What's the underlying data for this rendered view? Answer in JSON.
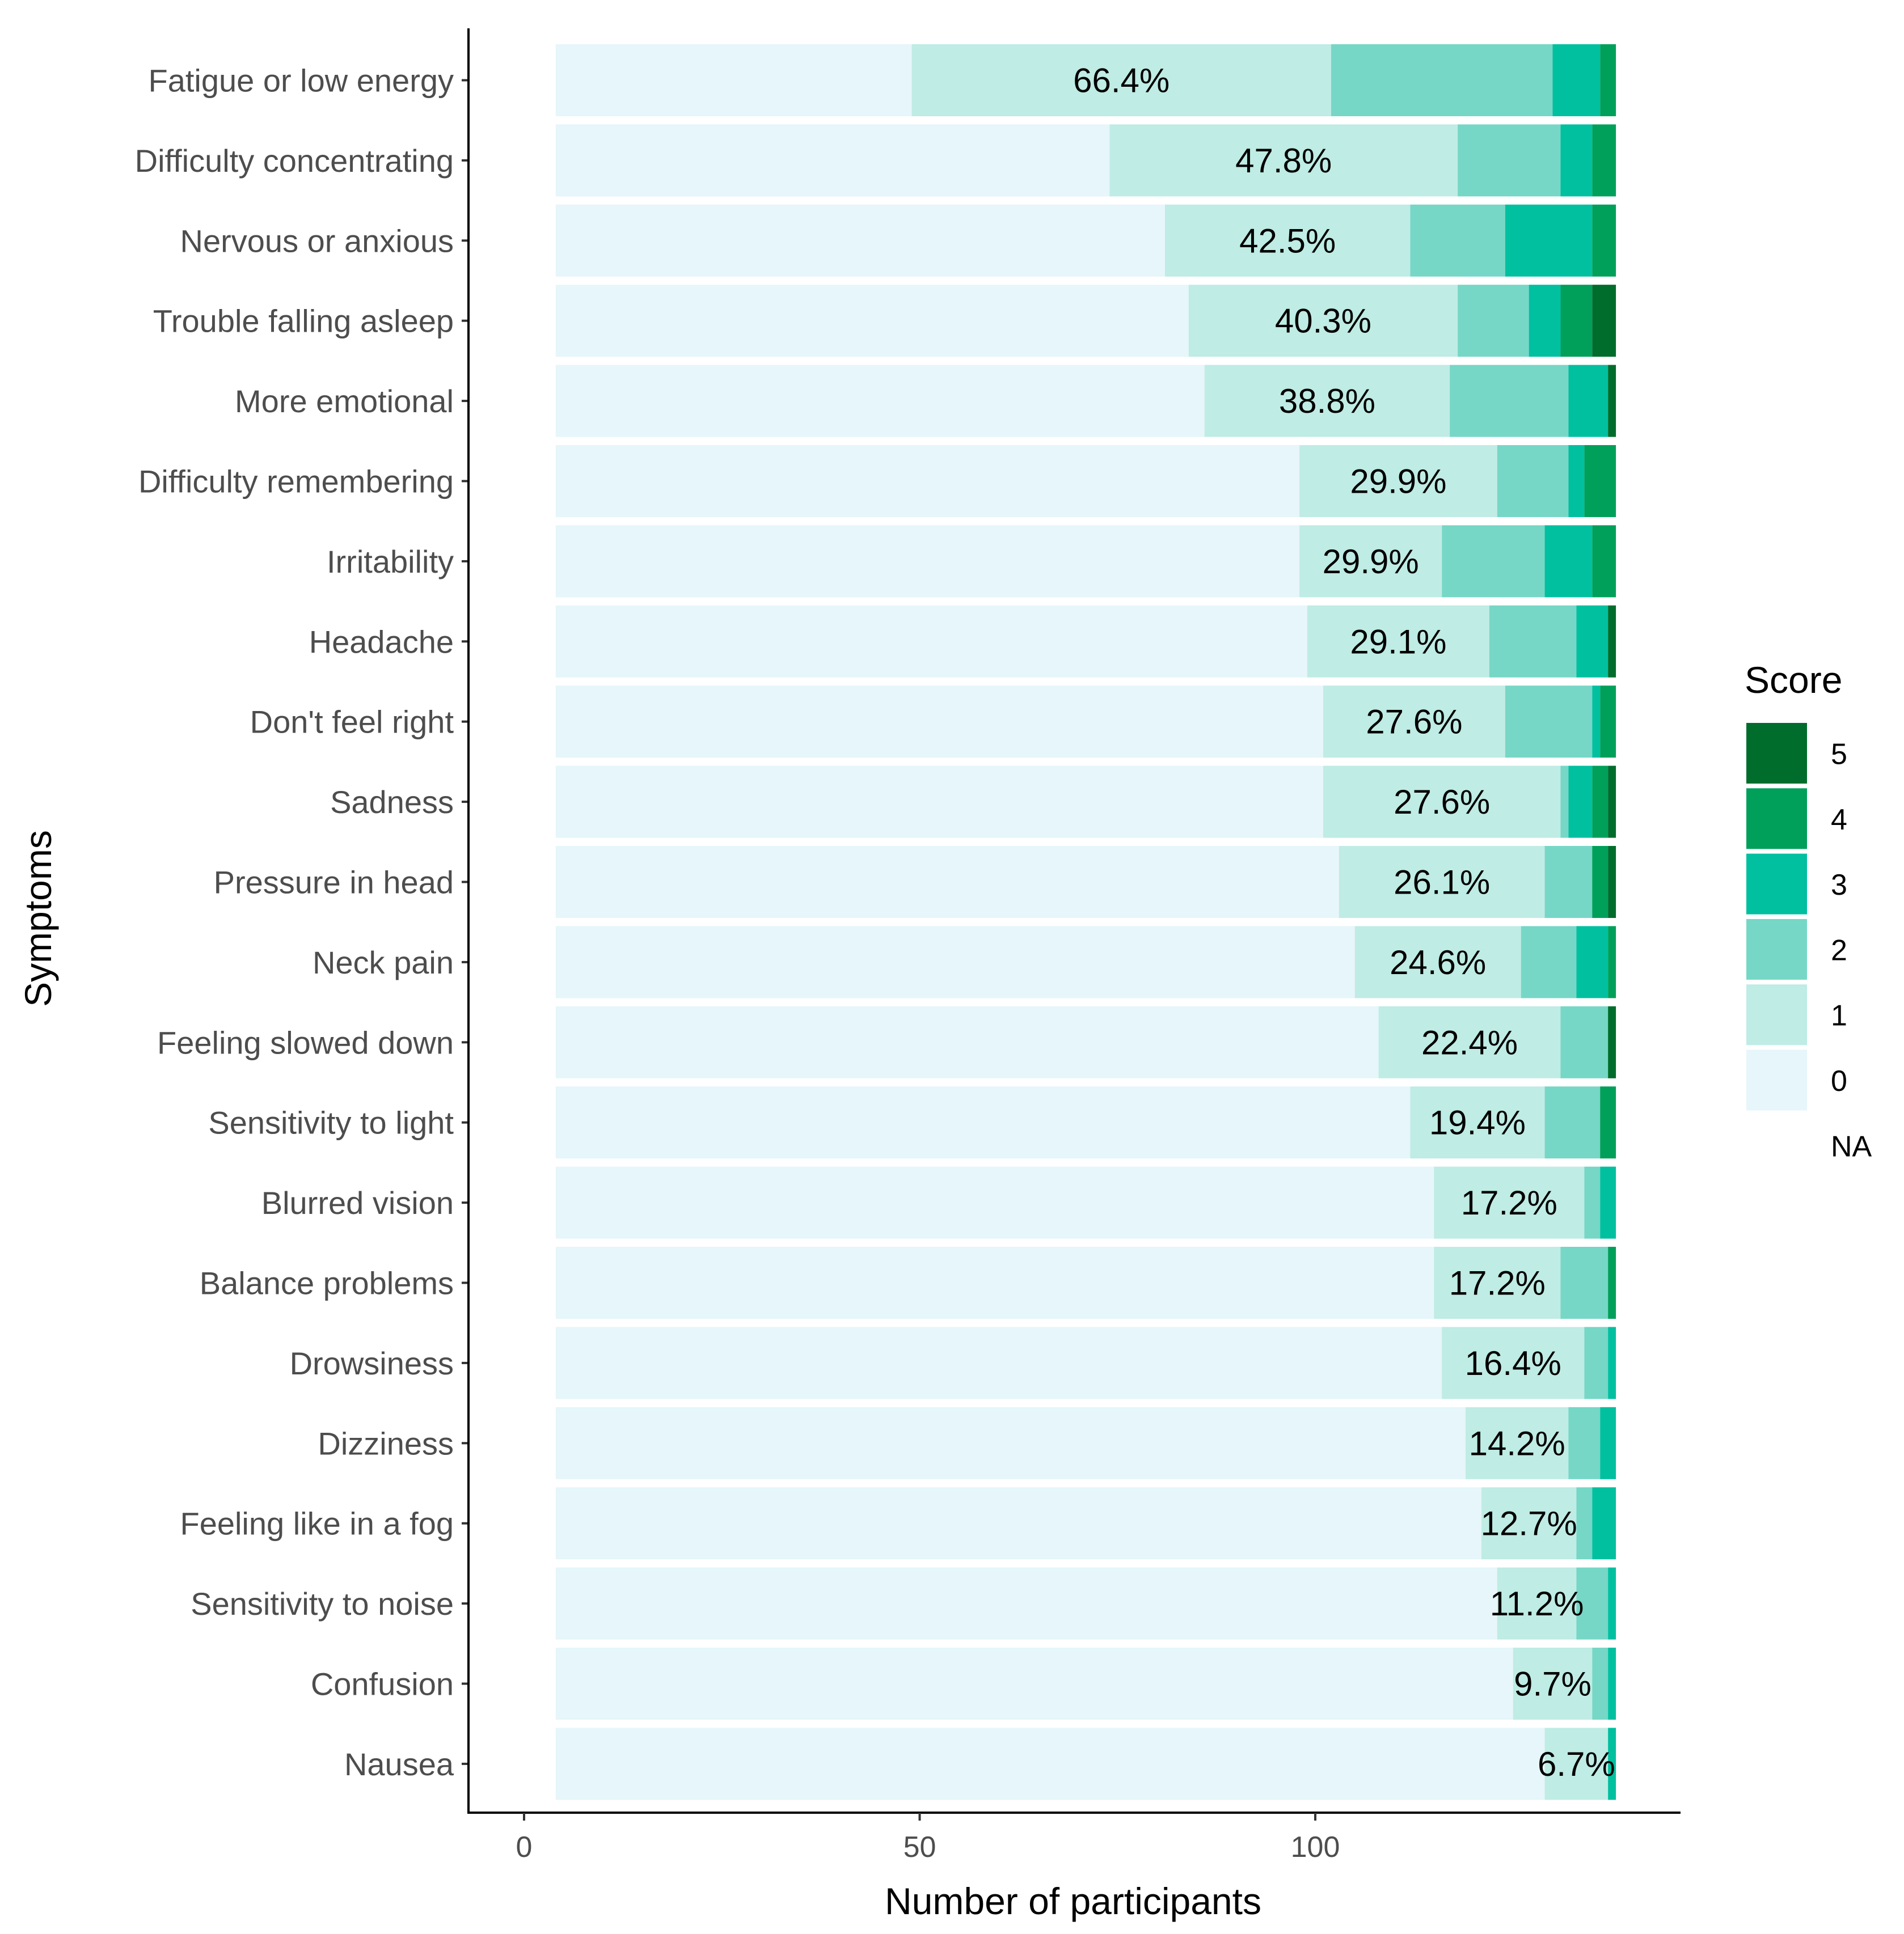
{
  "chart_data": {
    "type": "bar",
    "orientation": "horizontal",
    "stacked": true,
    "xlabel": "Number of participants",
    "ylabel": "Symptoms",
    "xlim": [
      -4,
      146
    ],
    "xticks": [
      0,
      50,
      100
    ],
    "legend": {
      "title": "Score",
      "position": "right",
      "entries": [
        {
          "label": "5",
          "color": "#006d2c"
        },
        {
          "label": "4",
          "color": "#00a05a"
        },
        {
          "label": "3",
          "color": "#00c0a0"
        },
        {
          "label": "2",
          "color": "#76d7c6"
        },
        {
          "label": "1",
          "color": "#bfece4"
        },
        {
          "label": "0",
          "color": "#e6f6fa"
        },
        {
          "label": "NA",
          "color": "#ffffff"
        }
      ]
    },
    "score_levels": [
      "0",
      "1",
      "2",
      "3",
      "4",
      "5"
    ],
    "bar_start": 4,
    "categories": [
      {
        "name": "Fatigue or low energy",
        "pct_label": "66.4%",
        "counts": [
          45,
          53,
          28,
          6,
          2,
          0
        ]
      },
      {
        "name": "Difficulty concentrating",
        "pct_label": "47.8%",
        "counts": [
          70,
          44,
          13,
          4,
          3,
          0
        ]
      },
      {
        "name": "Nervous or anxious",
        "pct_label": "42.5%",
        "counts": [
          77,
          31,
          12,
          11,
          3,
          0
        ]
      },
      {
        "name": "Trouble falling asleep",
        "pct_label": "40.3%",
        "counts": [
          80,
          34,
          9,
          4,
          4,
          3
        ]
      },
      {
        "name": "More emotional",
        "pct_label": "38.8%",
        "counts": [
          82,
          31,
          15,
          5,
          0,
          1
        ]
      },
      {
        "name": "Difficulty remembering",
        "pct_label": "29.9%",
        "counts": [
          94,
          25,
          9,
          2,
          4,
          0
        ]
      },
      {
        "name": "Irritability",
        "pct_label": "29.9%",
        "counts": [
          94,
          18,
          13,
          6,
          3,
          0
        ]
      },
      {
        "name": "Headache",
        "pct_label": "29.1%",
        "counts": [
          95,
          23,
          11,
          4,
          0,
          1
        ]
      },
      {
        "name": "Don't feel right",
        "pct_label": "27.6%",
        "counts": [
          97,
          23,
          11,
          1,
          2,
          0
        ]
      },
      {
        "name": "Sadness",
        "pct_label": "27.6%",
        "counts": [
          97,
          30,
          1,
          3,
          2,
          1
        ]
      },
      {
        "name": "Pressure in head",
        "pct_label": "26.1%",
        "counts": [
          99,
          26,
          6,
          0,
          2,
          1
        ]
      },
      {
        "name": "Neck pain",
        "pct_label": "24.6%",
        "counts": [
          101,
          21,
          7,
          4,
          1,
          0
        ]
      },
      {
        "name": "Feeling slowed down",
        "pct_label": "22.4%",
        "counts": [
          104,
          23,
          6,
          0,
          0,
          1
        ]
      },
      {
        "name": "Sensitivity to light",
        "pct_label": "19.4%",
        "counts": [
          108,
          17,
          7,
          0,
          2,
          0
        ]
      },
      {
        "name": "Blurred vision",
        "pct_label": "17.2%",
        "counts": [
          111,
          19,
          2,
          2,
          0,
          0
        ]
      },
      {
        "name": "Balance problems",
        "pct_label": "17.2%",
        "counts": [
          111,
          16,
          6,
          0,
          1,
          0
        ]
      },
      {
        "name": "Drowsiness",
        "pct_label": "16.4%",
        "counts": [
          112,
          18,
          3,
          1,
          0,
          0
        ]
      },
      {
        "name": "Dizziness",
        "pct_label": "14.2%",
        "counts": [
          115,
          13,
          4,
          2,
          0,
          0
        ]
      },
      {
        "name": "Feeling like in a fog",
        "pct_label": "12.7%",
        "counts": [
          117,
          12,
          2,
          3,
          0,
          0
        ]
      },
      {
        "name": "Sensitivity to noise",
        "pct_label": "11.2%",
        "counts": [
          119,
          10,
          4,
          1,
          0,
          0
        ]
      },
      {
        "name": "Confusion",
        "pct_label": "9.7%",
        "counts": [
          121,
          10,
          2,
          1,
          0,
          0
        ]
      },
      {
        "name": "Nausea",
        "pct_label": "6.7%",
        "counts": [
          125,
          8,
          0,
          1,
          0,
          0
        ]
      }
    ]
  }
}
